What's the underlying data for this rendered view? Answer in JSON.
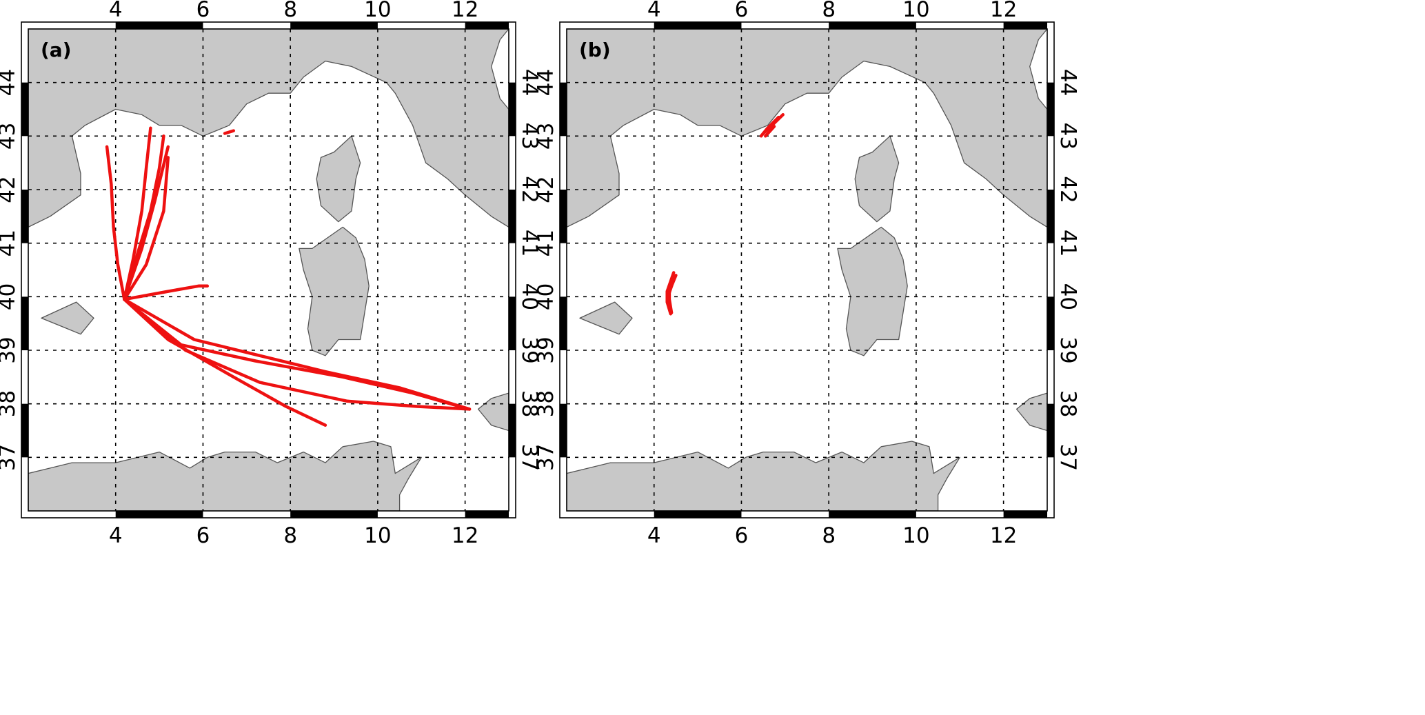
{
  "projection": {
    "lon_range": [
      2,
      13
    ],
    "lat_range": [
      36,
      45
    ]
  },
  "axes": {
    "lon_ticks": [
      4,
      6,
      8,
      10,
      12
    ],
    "lat_ticks": [
      37,
      38,
      39,
      40,
      41,
      42,
      43,
      44
    ],
    "lon_tick_labels": [
      "4",
      "6",
      "8",
      "10",
      "12"
    ],
    "lat_tick_labels": [
      "37",
      "38",
      "39",
      "40",
      "41",
      "42",
      "43",
      "44"
    ],
    "grid": true
  },
  "colors": {
    "land": "#c8c8c8",
    "coast": "#555555",
    "track": "#ee1111",
    "sea": "#ffffff"
  },
  "land_polygons": [
    {
      "name": "france-italy-mainland",
      "coords": [
        [
          2,
          45
        ],
        [
          13,
          45
        ],
        [
          12.8,
          44.8
        ],
        [
          12.6,
          44.3
        ],
        [
          12.8,
          43.7
        ],
        [
          13,
          43.5
        ],
        [
          13,
          41.3
        ],
        [
          12.6,
          41.5
        ],
        [
          12,
          41.9
        ],
        [
          11.6,
          42.2
        ],
        [
          11.1,
          42.5
        ],
        [
          10.8,
          43.2
        ],
        [
          10.4,
          43.8
        ],
        [
          10.2,
          44
        ],
        [
          9.4,
          44.3
        ],
        [
          8.8,
          44.4
        ],
        [
          8.3,
          44.1
        ],
        [
          8,
          43.8
        ],
        [
          7.5,
          43.8
        ],
        [
          7,
          43.6
        ],
        [
          6.6,
          43.2
        ],
        [
          6.3,
          43.1
        ],
        [
          6,
          43
        ],
        [
          5.5,
          43.2
        ],
        [
          5,
          43.2
        ],
        [
          4.6,
          43.4
        ],
        [
          4,
          43.5
        ],
        [
          3.3,
          43.2
        ],
        [
          3,
          43
        ],
        [
          3.2,
          42.3
        ],
        [
          3.2,
          41.9
        ],
        [
          2.5,
          41.5
        ],
        [
          2,
          41.3
        ]
      ]
    },
    {
      "name": "corsica",
      "coords": [
        [
          9.4,
          43
        ],
        [
          9.6,
          42.5
        ],
        [
          9.5,
          42.2
        ],
        [
          9.4,
          41.6
        ],
        [
          9.1,
          41.4
        ],
        [
          8.7,
          41.7
        ],
        [
          8.6,
          42.2
        ],
        [
          8.7,
          42.6
        ],
        [
          9,
          42.7
        ]
      ]
    },
    {
      "name": "sardinia",
      "coords": [
        [
          9.2,
          41.3
        ],
        [
          9.5,
          41.1
        ],
        [
          9.7,
          40.7
        ],
        [
          9.8,
          40.2
        ],
        [
          9.7,
          39.7
        ],
        [
          9.6,
          39.2
        ],
        [
          9.1,
          39.2
        ],
        [
          8.8,
          38.9
        ],
        [
          8.5,
          39
        ],
        [
          8.4,
          39.4
        ],
        [
          8.5,
          40
        ],
        [
          8.3,
          40.5
        ],
        [
          8.2,
          40.9
        ],
        [
          8.5,
          40.9
        ]
      ]
    },
    {
      "name": "mallorca",
      "coords": [
        [
          2.3,
          39.6
        ],
        [
          3.1,
          39.9
        ],
        [
          3.5,
          39.6
        ],
        [
          3.2,
          39.3
        ],
        [
          2.9,
          39.4
        ]
      ]
    },
    {
      "name": "sicily-tip",
      "coords": [
        [
          12.3,
          37.9
        ],
        [
          12.6,
          38.1
        ],
        [
          13,
          38.2
        ],
        [
          13,
          37.5
        ],
        [
          12.6,
          37.6
        ]
      ]
    },
    {
      "name": "north-africa",
      "coords": [
        [
          2,
          36.7
        ],
        [
          2.5,
          36.8
        ],
        [
          3,
          36.9
        ],
        [
          3.6,
          36.9
        ],
        [
          4,
          36.9
        ],
        [
          5,
          37.1
        ],
        [
          5.7,
          36.8
        ],
        [
          6.1,
          37
        ],
        [
          6.5,
          37.1
        ],
        [
          7.2,
          37.1
        ],
        [
          7.7,
          36.9
        ],
        [
          8.3,
          37.1
        ],
        [
          8.8,
          36.9
        ],
        [
          9.2,
          37.2
        ],
        [
          9.9,
          37.3
        ],
        [
          10.3,
          37.2
        ],
        [
          10.4,
          36.7
        ],
        [
          11,
          37
        ],
        [
          10.7,
          36.6
        ],
        [
          10.5,
          36.3
        ],
        [
          10.5,
          36
        ],
        [
          2,
          36
        ]
      ]
    }
  ],
  "panels": [
    {
      "id": "a",
      "label": "(a)",
      "tracks": [
        [
          [
            4.2,
            39.95
          ],
          [
            4.05,
            40.6
          ],
          [
            3.95,
            41.3
          ],
          [
            3.9,
            42.1
          ],
          [
            3.8,
            42.8
          ]
        ],
        [
          [
            4.2,
            39.95
          ],
          [
            4.4,
            40.7
          ],
          [
            4.6,
            41.6
          ],
          [
            4.7,
            42.4
          ],
          [
            4.8,
            43.15
          ]
        ],
        [
          [
            4.2,
            39.95
          ],
          [
            4.5,
            40.8
          ],
          [
            4.8,
            41.6
          ],
          [
            5,
            42.4
          ],
          [
            5.1,
            43
          ]
        ],
        [
          [
            4.2,
            39.95
          ],
          [
            4.6,
            40.9
          ],
          [
            4.9,
            41.8
          ],
          [
            5.2,
            42.8
          ]
        ],
        [
          [
            4.2,
            39.95
          ],
          [
            4.7,
            40.6
          ],
          [
            5.1,
            41.6
          ],
          [
            5.2,
            42.6
          ]
        ],
        [
          [
            4.2,
            39.95
          ],
          [
            5.2,
            40.1
          ],
          [
            5.9,
            40.2
          ],
          [
            6.1,
            40.2
          ]
        ],
        [
          [
            4.2,
            39.95
          ],
          [
            5.5,
            39.1
          ],
          [
            7.2,
            38.8
          ],
          [
            9.2,
            38.5
          ],
          [
            10.8,
            38.2
          ],
          [
            12.1,
            37.9
          ]
        ],
        [
          [
            4.2,
            39.95
          ],
          [
            5.8,
            39.2
          ],
          [
            7.3,
            38.9
          ],
          [
            8.8,
            38.6
          ],
          [
            10.5,
            38.3
          ],
          [
            12.1,
            37.9
          ]
        ],
        [
          [
            4.2,
            39.95
          ],
          [
            5.6,
            39
          ],
          [
            7.3,
            38.4
          ],
          [
            9.3,
            38.05
          ],
          [
            10.9,
            37.95
          ],
          [
            12.1,
            37.9
          ]
        ],
        [
          [
            4.2,
            39.95
          ],
          [
            5.2,
            39.2
          ],
          [
            6.7,
            38.5
          ],
          [
            7.9,
            37.95
          ],
          [
            8.8,
            37.6
          ]
        ],
        [
          [
            6.5,
            43.05
          ],
          [
            6.7,
            43.1
          ]
        ]
      ]
    },
    {
      "id": "b",
      "label": "(b)",
      "tracks": [
        [
          [
            6.45,
            43
          ],
          [
            6.6,
            43.15
          ],
          [
            6.85,
            43.35
          ]
        ],
        [
          [
            6.5,
            43.05
          ],
          [
            6.7,
            43.2
          ],
          [
            6.95,
            43.4
          ]
        ],
        [
          [
            6.55,
            43
          ],
          [
            6.75,
            43.18
          ]
        ],
        [
          [
            4.5,
            40.4
          ],
          [
            4.35,
            40.1
          ],
          [
            4.35,
            39.95
          ],
          [
            4.4,
            39.7
          ]
        ],
        [
          [
            4.45,
            40.45
          ],
          [
            4.3,
            40.1
          ],
          [
            4.3,
            39.9
          ],
          [
            4.38,
            39.68
          ]
        ],
        [
          [
            4.4,
            40.2
          ],
          [
            4.32,
            40
          ],
          [
            4.35,
            39.8
          ]
        ]
      ]
    }
  ]
}
